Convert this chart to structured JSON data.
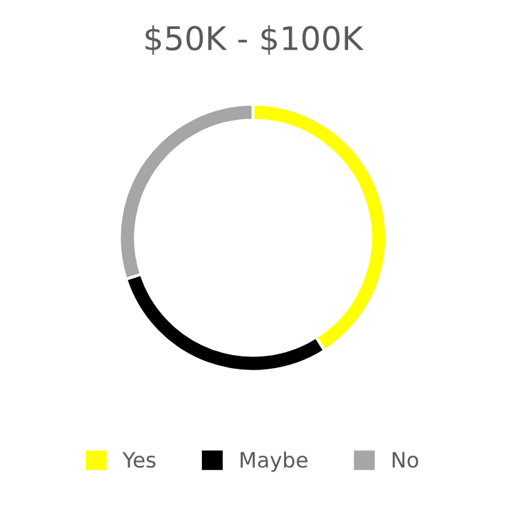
{
  "chart_data": {
    "type": "donut",
    "title": "$50K - $100K",
    "categories": [
      "Yes",
      "Maybe",
      "No"
    ],
    "values": [
      41,
      29,
      30
    ],
    "colors": [
      "#ffff00",
      "#000000",
      "#a6a6a6"
    ],
    "legend": "bottom"
  }
}
